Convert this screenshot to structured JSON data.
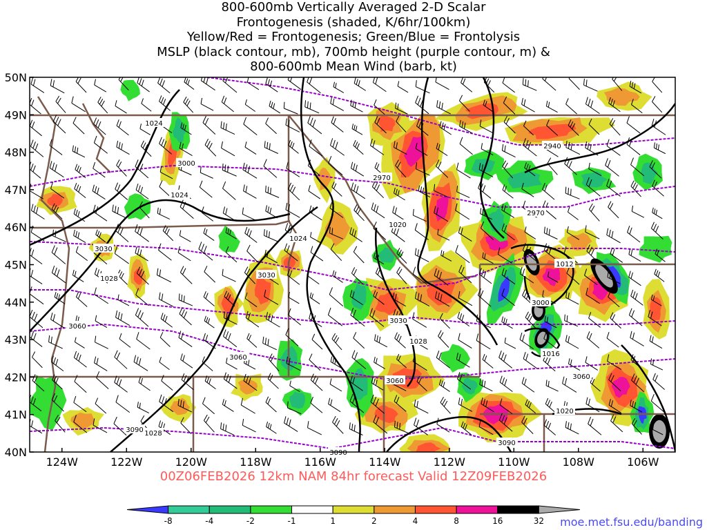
{
  "title_lines": [
    "800-600mb Vertically Averaged 2-D Scalar",
    "Frontogenesis (shaded, K/6hr/100km)",
    "Yellow/Red = Frontogenesis;  Green/Blue = Frontolysis",
    "MSLP (black contour, mb), 700mb height (purple contour, m) &",
    "800-600mb Mean Wind (barb, kt)"
  ],
  "valid_text": "00Z06FEB2026 12km NAM 84hr forecast Valid 12Z09FEB2026",
  "credit": "moe.met.fsu.edu/banding",
  "map": {
    "lon_range": [
      -125,
      -105
    ],
    "lat_range": [
      40,
      50
    ],
    "lat_labels": [
      "40N",
      "41N",
      "42N",
      "43N",
      "44N",
      "45N",
      "46N",
      "47N",
      "48N",
      "49N",
      "50N"
    ],
    "lon_labels": [
      "124W",
      "122W",
      "120W",
      "118W",
      "116W",
      "114W",
      "112W",
      "110W",
      "108W",
      "106W"
    ],
    "mslp_labels": [
      "1024",
      "1024",
      "1024",
      "1028",
      "1028",
      "1028",
      "1012",
      "1016",
      "1020",
      "1020"
    ],
    "height_labels": [
      "3000",
      "2970",
      "2940",
      "2970",
      "3030",
      "3030",
      "3060",
      "3060",
      "3030",
      "3060",
      "3060",
      "3090",
      "3090",
      "3090",
      "3000"
    ]
  },
  "colorbar": {
    "colors": [
      "#3a3aff",
      "#33cc99",
      "#22bb77",
      "#33dd33",
      "#ffffff",
      "#dddd33",
      "#ee9933",
      "#ff5533",
      "#ee1199",
      "#000000",
      "#aaaaaa"
    ],
    "ticks": [
      "-8",
      "-4",
      "-2",
      "-1",
      "1",
      "2",
      "4",
      "8",
      "16",
      "32"
    ]
  },
  "colors": {
    "mslp": "#000000",
    "height": "#9900cc",
    "border": "#7a5a4a",
    "barb": "#000000"
  }
}
